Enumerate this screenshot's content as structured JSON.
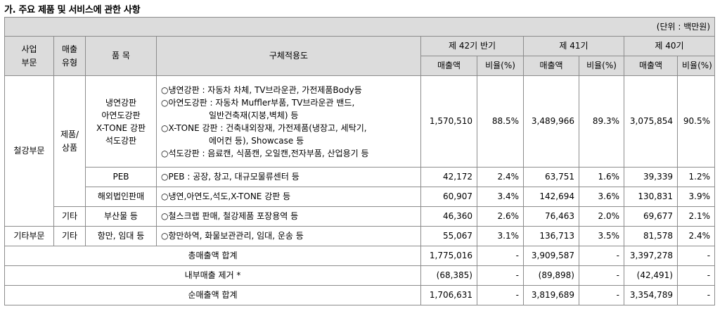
{
  "section_title": "가. 주요 제품 및 서비스에 관한 사항",
  "unit": "(단위 : 백만원)",
  "headers": {
    "segment_l1": "사업",
    "segment_l2": "부문",
    "sales_type_l1": "매출",
    "sales_type_l2": "유형",
    "item": "품 목",
    "usage": "구체적용도",
    "period1": "제 42기 반기",
    "period2": "제 41기",
    "period3": "제 40기",
    "sales": "매출액",
    "ratio": "비율(%)"
  },
  "rows": {
    "steel": {
      "segment": "철강부문",
      "type_l1": "제품/",
      "type_l2": "상품",
      "items": [
        "냉연강판",
        "아연도강판",
        "X-TONE 강판",
        "석도강판"
      ],
      "usage": [
        "○냉연강판 : 자동차 차체, TV브라운관, 가전제품Body등",
        "○아연도강판 : 자동차 Muffler부품, TV브라운관 밴드,",
        "일반건축재(지붕,벽체) 등",
        "○X-TONE 강판 : 건축내외장재, 가전제품(냉장고, 세탁기,",
        "에어컨 등), Showcase 등",
        "○석도강판 : 음료캔, 식품캔, 오일캔,전자부품, 산업용기 등"
      ],
      "values": [
        "1,570,510",
        "88.5%",
        "3,489,966",
        "89.3%",
        "3,075,854",
        "90.5%"
      ]
    },
    "peb": {
      "item": "PEB",
      "usage": "○PEB : 공장, 창고, 대규모물류센터 등",
      "values": [
        "42,172",
        "2.4%",
        "63,751",
        "1.6%",
        "39,339",
        "1.2%"
      ]
    },
    "overseas": {
      "item": "해외법인판매",
      "usage": "○냉연,아연도,석도,X-TONE 강판 등",
      "values": [
        "60,907",
        "3.4%",
        "142,694",
        "3.6%",
        "130,831",
        "3.9%"
      ]
    },
    "byproduct": {
      "type": "기타",
      "item": "부산물 등",
      "usage": "○철스크랩 판매, 철강제품 포장용역 등",
      "values": [
        "46,360",
        "2.6%",
        "76,463",
        "2.0%",
        "69,677",
        "2.1%"
      ]
    },
    "other": {
      "segment": "기타부문",
      "type": "기타",
      "item": "항만, 임대 등",
      "usage": "○항만하역, 화물보관관리, 임대, 운송 등",
      "values": [
        "55,067",
        "3.1%",
        "136,713",
        "3.5%",
        "81,578",
        "2.4%"
      ]
    },
    "total": {
      "label": "총매출액 합계",
      "values": [
        "1,775,016",
        "-",
        "3,909,587",
        "-",
        "3,397,278",
        "-"
      ]
    },
    "internal": {
      "label": "내부매출 제거 *",
      "values": [
        "(68,385)",
        "-",
        "(89,898)",
        "-",
        "(42,491)",
        "-"
      ]
    },
    "net": {
      "label": "순매출액 합계",
      "values": [
        "1,706,631",
        "-",
        "3,819,689",
        "-",
        "3,354,789",
        "-"
      ]
    }
  }
}
